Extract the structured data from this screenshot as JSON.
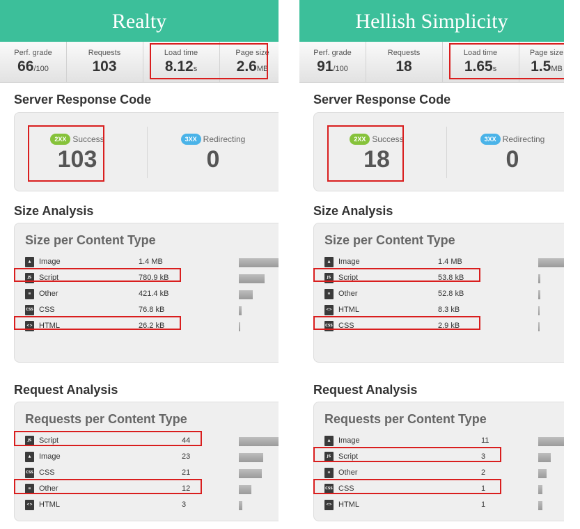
{
  "columns": [
    {
      "title": "Realty",
      "stats": [
        {
          "label": "Perf. grade",
          "value": "66",
          "unit": "/100"
        },
        {
          "label": "Requests",
          "value": "103",
          "unit": ""
        },
        {
          "label": "Load time",
          "value": "8.12",
          "unit": "s"
        },
        {
          "label": "Page size",
          "value": "2.6",
          "unit": "MB"
        }
      ],
      "server": {
        "section_title": "Server Response Code",
        "codes": [
          {
            "badge": "2XX",
            "label": "Success",
            "value": "103",
            "color": "#86c23a"
          },
          {
            "badge": "3XX",
            "label": "Redirecting",
            "value": "0",
            "color": "#4ab3e8"
          }
        ]
      },
      "size": {
        "section_title": "Size Analysis",
        "panel_title": "Size per Content Type",
        "rows": [
          {
            "icon": "image-file-icon",
            "label": "Image",
            "value": "1.4 MB",
            "bar": 1.0
          },
          {
            "icon": "js-file-icon",
            "label": "Script",
            "value": "780.9 kB",
            "bar": 0.55
          },
          {
            "icon": "text-file-icon",
            "label": "Other",
            "value": "421.4 kB",
            "bar": 0.3
          },
          {
            "icon": "css-file-icon",
            "label": "CSS",
            "value": "76.8 kB",
            "bar": 0.06
          },
          {
            "icon": "html-file-icon",
            "label": "HTML",
            "value": "26.2 kB",
            "bar": 0.02
          }
        ]
      },
      "requests": {
        "section_title": "Request Analysis",
        "panel_title": "Requests per Content Type",
        "rows": [
          {
            "icon": "js-file-icon",
            "label": "Script",
            "value": "44",
            "bar": 1.0
          },
          {
            "icon": "image-file-icon",
            "label": "Image",
            "value": "23",
            "bar": 0.52
          },
          {
            "icon": "css-file-icon",
            "label": "CSS",
            "value": "21",
            "bar": 0.48
          },
          {
            "icon": "text-file-icon",
            "label": "Other",
            "value": "12",
            "bar": 0.27
          },
          {
            "icon": "html-file-icon",
            "label": "HTML",
            "value": "3",
            "bar": 0.07
          }
        ]
      }
    },
    {
      "title": "Hellish Simplicity",
      "stats": [
        {
          "label": "Perf. grade",
          "value": "91",
          "unit": "/100"
        },
        {
          "label": "Requests",
          "value": "18",
          "unit": ""
        },
        {
          "label": "Load time",
          "value": "1.65",
          "unit": "s"
        },
        {
          "label": "Page size",
          "value": "1.5",
          "unit": "MB"
        }
      ],
      "server": {
        "section_title": "Server Response Code",
        "codes": [
          {
            "badge": "2XX",
            "label": "Success",
            "value": "18",
            "color": "#86c23a"
          },
          {
            "badge": "3XX",
            "label": "Redirecting",
            "value": "0",
            "color": "#4ab3e8"
          }
        ]
      },
      "size": {
        "section_title": "Size Analysis",
        "panel_title": "Size per Content Type",
        "rows": [
          {
            "icon": "image-file-icon",
            "label": "Image",
            "value": "1.4 MB",
            "bar": 1.0
          },
          {
            "icon": "js-file-icon",
            "label": "Script",
            "value": "53.8 kB",
            "bar": 0.04
          },
          {
            "icon": "text-file-icon",
            "label": "Other",
            "value": "52.8 kB",
            "bar": 0.04
          },
          {
            "icon": "html-file-icon",
            "label": "HTML",
            "value": "8.3 kB",
            "bar": 0.01
          },
          {
            "icon": "css-file-icon",
            "label": "CSS",
            "value": "2.9 kB",
            "bar": 0.005
          }
        ]
      },
      "requests": {
        "section_title": "Request Analysis",
        "panel_title": "Requests per Content Type",
        "rows": [
          {
            "icon": "image-file-icon",
            "label": "Image",
            "value": "11",
            "bar": 1.0
          },
          {
            "icon": "js-file-icon",
            "label": "Script",
            "value": "3",
            "bar": 0.27
          },
          {
            "icon": "text-file-icon",
            "label": "Other",
            "value": "2",
            "bar": 0.18
          },
          {
            "icon": "css-file-icon",
            "label": "CSS",
            "value": "1",
            "bar": 0.09
          },
          {
            "icon": "html-file-icon",
            "label": "HTML",
            "value": "1",
            "bar": 0.09
          }
        ]
      }
    }
  ]
}
